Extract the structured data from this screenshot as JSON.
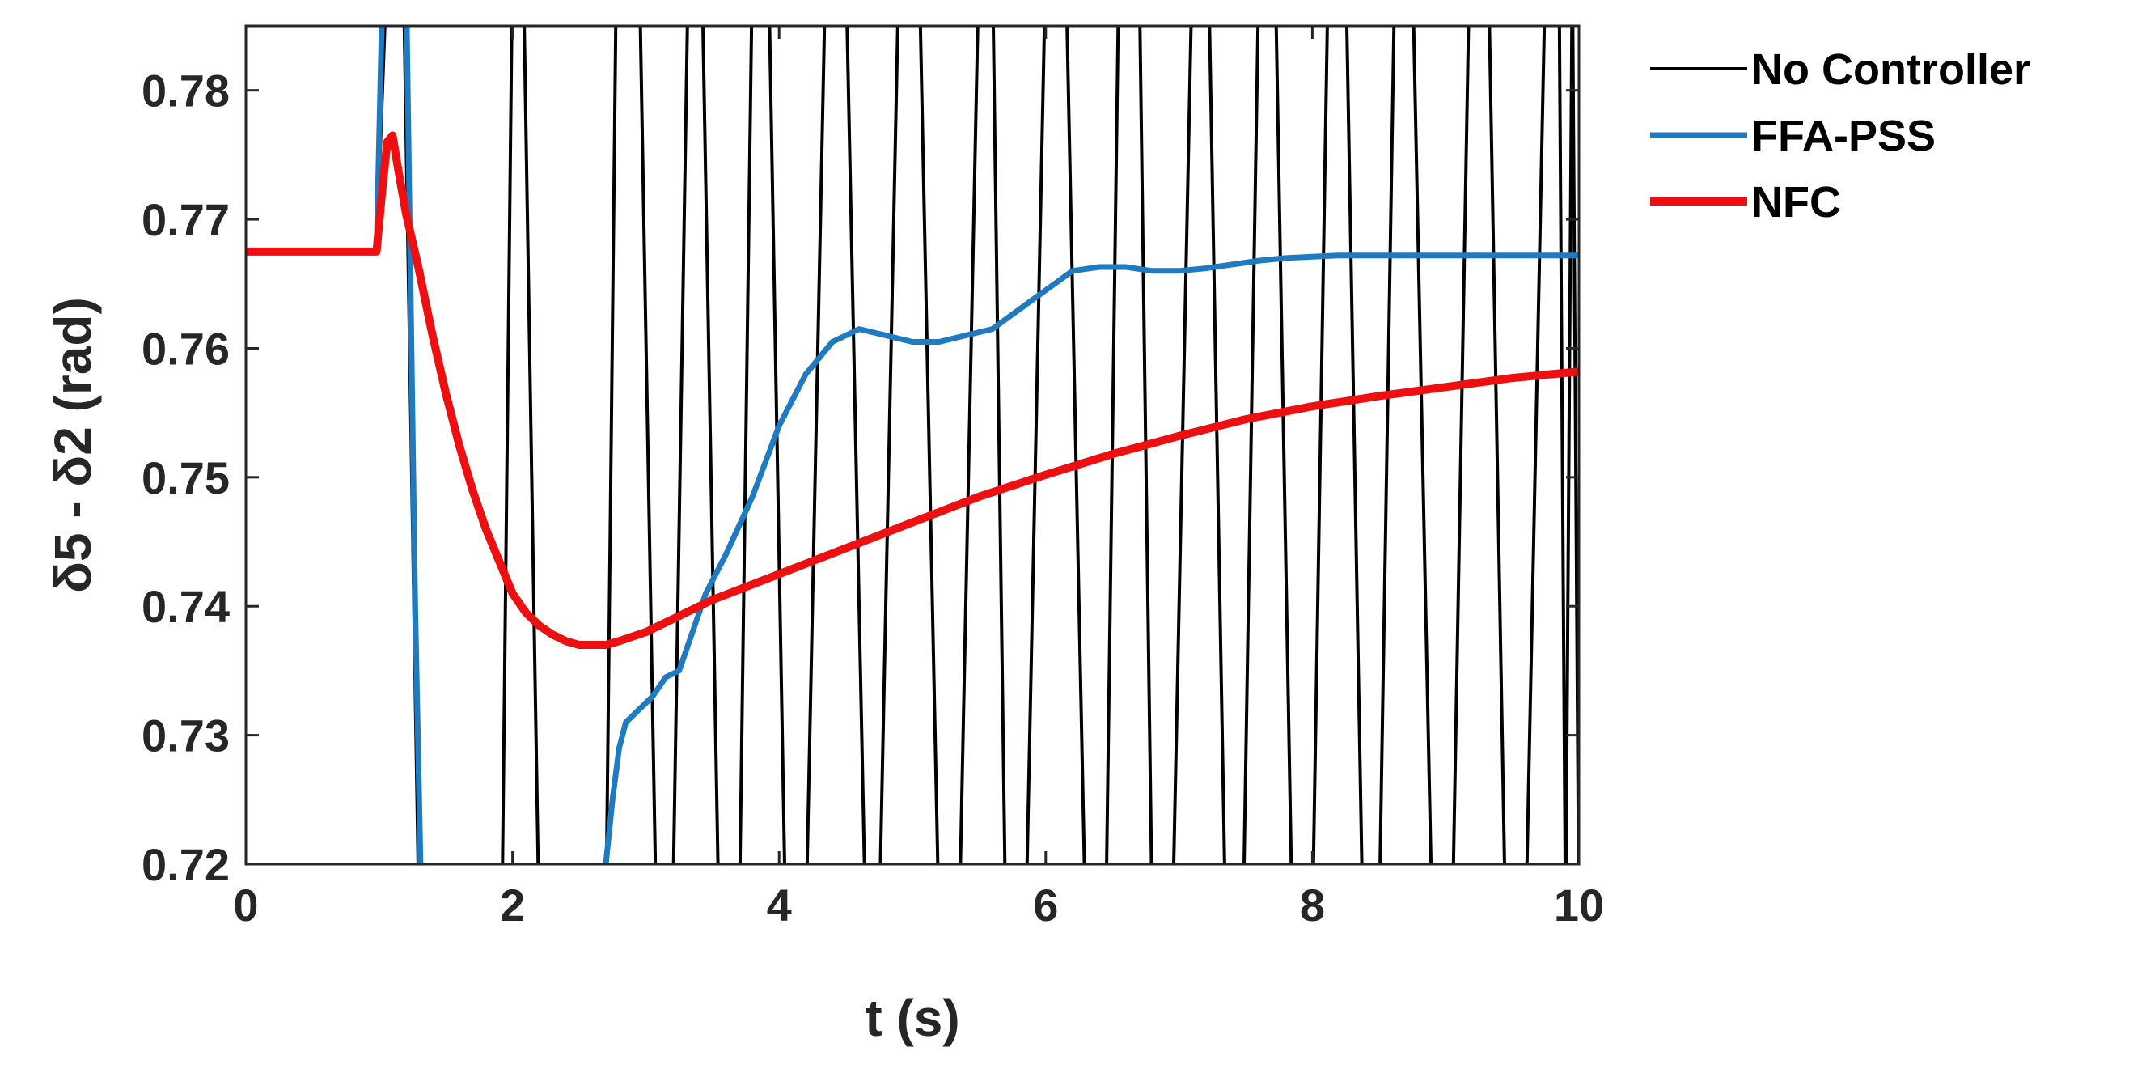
{
  "chart_data": {
    "type": "line",
    "xlabel": "t (s)",
    "ylabel": "δ5 - δ2 (rad)",
    "xlim": [
      0,
      10
    ],
    "ylim": [
      0.72,
      0.785
    ],
    "xticks": [
      0,
      2,
      4,
      6,
      8,
      10
    ],
    "xtick_labels": [
      "0",
      "2",
      "4",
      "6",
      "8",
      "10"
    ],
    "yticks": [
      0.72,
      0.73,
      0.74,
      0.75,
      0.76,
      0.77,
      0.78
    ],
    "ytick_labels": [
      "0.72",
      "0.73",
      "0.74",
      "0.75",
      "0.76",
      "0.77",
      "0.78"
    ],
    "grid": false,
    "legend_position": "outside-right",
    "series": [
      {
        "name": "No Controller",
        "color": "#000000",
        "note_kind": "oscillation",
        "x": [
          0,
          0.98,
          1.06,
          1.18,
          1.3,
          1.92,
          2.0,
          2.08,
          2.2,
          2.7,
          2.78,
          2.95,
          3.08,
          3.2,
          3.32,
          3.42,
          3.55,
          3.7,
          3.8,
          3.92,
          4.05,
          4.2,
          4.35,
          4.5,
          4.65,
          4.75,
          4.9,
          5.05,
          5.2,
          5.35,
          5.5,
          5.6,
          5.7,
          5.85,
          6.0,
          6.15,
          6.3,
          6.45,
          6.55,
          6.7,
          6.8,
          6.95,
          7.1,
          7.22,
          7.35,
          7.48,
          7.6,
          7.72,
          7.85,
          8.0,
          8.12,
          8.25,
          8.38,
          8.5,
          8.62,
          8.75,
          8.9,
          9.05,
          9.18,
          9.32,
          9.45,
          9.6,
          9.75,
          9.85,
          9.9,
          9.95,
          10.0
        ],
        "y": [
          0.7675,
          0.7675,
          0.79,
          0.79,
          0.715,
          0.715,
          0.79,
          0.79,
          0.715,
          0.715,
          0.79,
          0.79,
          0.715,
          0.715,
          0.79,
          0.79,
          0.715,
          0.715,
          0.79,
          0.79,
          0.715,
          0.715,
          0.79,
          0.79,
          0.715,
          0.715,
          0.79,
          0.79,
          0.715,
          0.715,
          0.79,
          0.79,
          0.715,
          0.715,
          0.79,
          0.79,
          0.715,
          0.715,
          0.79,
          0.79,
          0.715,
          0.715,
          0.79,
          0.79,
          0.715,
          0.715,
          0.79,
          0.79,
          0.715,
          0.715,
          0.79,
          0.79,
          0.715,
          0.715,
          0.79,
          0.79,
          0.715,
          0.715,
          0.79,
          0.79,
          0.715,
          0.715,
          0.79,
          0.79,
          0.715,
          0.79,
          0.715
        ]
      },
      {
        "name": "FFA-PSS",
        "color": "#1f7bc1",
        "x": [
          0,
          0.98,
          1.03,
          1.15,
          1.2,
          1.27,
          1.32,
          1.4,
          2.65,
          2.7,
          2.75,
          2.8,
          2.85,
          2.95,
          3.05,
          3.15,
          3.25,
          3.35,
          3.45,
          3.6,
          3.8,
          4.0,
          4.2,
          4.4,
          4.6,
          4.8,
          5.0,
          5.2,
          5.4,
          5.6,
          5.8,
          6.0,
          6.2,
          6.4,
          6.6,
          6.8,
          7.0,
          7.2,
          7.4,
          7.6,
          7.8,
          8.0,
          8.2,
          8.4,
          8.6,
          8.8,
          9.0,
          9.2,
          9.4,
          9.6,
          9.8,
          10.0
        ],
        "y": [
          0.7675,
          0.7675,
          0.79,
          0.79,
          0.79,
          0.74,
          0.715,
          0.715,
          0.715,
          0.72,
          0.725,
          0.729,
          0.731,
          0.732,
          0.733,
          0.7345,
          0.735,
          0.738,
          0.741,
          0.744,
          0.7485,
          0.754,
          0.758,
          0.7605,
          0.7615,
          0.761,
          0.7605,
          0.7605,
          0.761,
          0.7615,
          0.763,
          0.7645,
          0.766,
          0.7663,
          0.7663,
          0.766,
          0.766,
          0.7662,
          0.7665,
          0.7668,
          0.767,
          0.7671,
          0.7672,
          0.7672,
          0.7672,
          0.7672,
          0.7672,
          0.7672,
          0.7672,
          0.7672,
          0.7672,
          0.7672
        ]
      },
      {
        "name": "NFC",
        "color": "#ee1010",
        "x": [
          0,
          0.98,
          1.02,
          1.06,
          1.1,
          1.14,
          1.2,
          1.3,
          1.4,
          1.5,
          1.6,
          1.7,
          1.8,
          1.9,
          2.0,
          2.1,
          2.2,
          2.3,
          2.4,
          2.5,
          2.6,
          2.7,
          2.8,
          3.0,
          3.2,
          3.5,
          4.0,
          4.5,
          5.0,
          5.5,
          6.0,
          6.5,
          7.0,
          7.5,
          8.0,
          8.5,
          9.0,
          9.5,
          10.0
        ],
        "y": [
          0.7675,
          0.7675,
          0.772,
          0.776,
          0.7765,
          0.774,
          0.7705,
          0.766,
          0.761,
          0.7565,
          0.7525,
          0.749,
          0.746,
          0.7435,
          0.741,
          0.7395,
          0.7385,
          0.7378,
          0.7373,
          0.737,
          0.737,
          0.737,
          0.7373,
          0.738,
          0.739,
          0.7405,
          0.7425,
          0.7445,
          0.7465,
          0.7485,
          0.7502,
          0.7518,
          0.7532,
          0.7545,
          0.7555,
          0.7563,
          0.757,
          0.7577,
          0.7582
        ]
      }
    ]
  }
}
